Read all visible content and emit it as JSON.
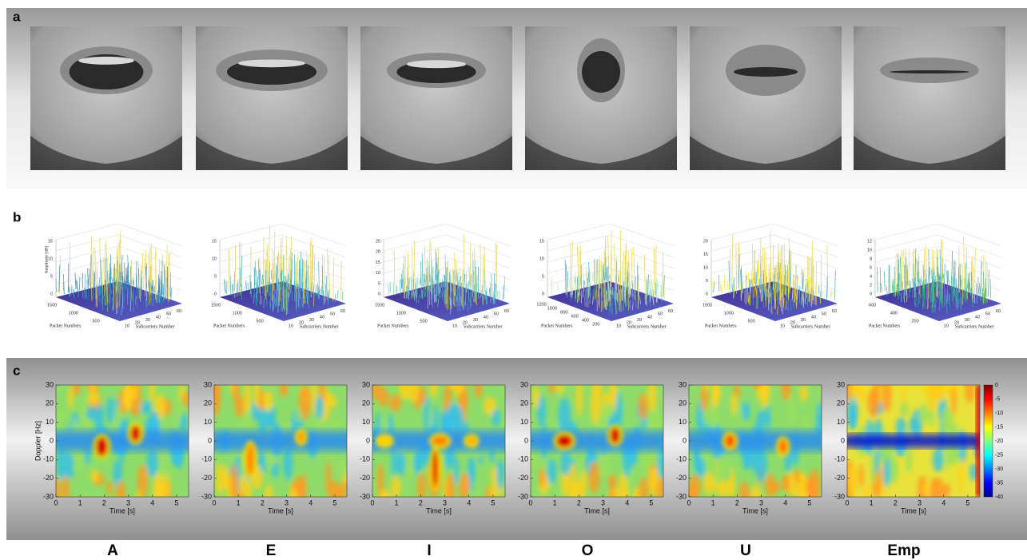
{
  "panel_labels": [
    "a",
    "b",
    "c"
  ],
  "vowels": [
    "A",
    "E",
    "I",
    "O",
    "U",
    "Emp"
  ],
  "surface": {
    "z_label": "Amplitude [dB]",
    "x_label": "Packet Numbers",
    "y_label": "Subcarriers Number",
    "plots": [
      {
        "zticks": [
          "15",
          "10",
          "5",
          "0"
        ],
        "packet_ticks": [
          "1500",
          "1000",
          "500"
        ],
        "sub_ticks": [
          "10",
          "20",
          "30",
          "40",
          "50",
          "60"
        ]
      },
      {
        "zticks": [
          "15",
          "10",
          "5",
          "0"
        ],
        "packet_ticks": [
          "1500",
          "1000",
          "500"
        ],
        "sub_ticks": [
          "10",
          "20",
          "30",
          "40",
          "50",
          "60"
        ]
      },
      {
        "zticks": [
          "25",
          "20",
          "15",
          "10",
          "5",
          "0"
        ],
        "packet_ticks": [
          "1500",
          "1000",
          "500"
        ],
        "sub_ticks": [
          "10",
          "20",
          "30",
          "40",
          "50",
          "60"
        ]
      },
      {
        "zticks": [
          "15",
          "10",
          "5",
          "0"
        ],
        "packet_ticks": [
          "1200",
          "1000",
          "800",
          "600",
          "400",
          "200"
        ],
        "sub_ticks": [
          "10",
          "20",
          "30",
          "40",
          "50",
          "60"
        ]
      },
      {
        "zticks": [
          "20",
          "15",
          "10",
          "5",
          "0"
        ],
        "packet_ticks": [
          "1500",
          "1000",
          "500"
        ],
        "sub_ticks": [
          "10",
          "20",
          "30",
          "40",
          "50",
          "60"
        ]
      },
      {
        "zticks": [
          "12",
          "10",
          "8",
          "6",
          "4",
          "2",
          "0"
        ],
        "packet_ticks": [
          "600",
          "400",
          "200"
        ],
        "sub_ticks": [
          "10",
          "20",
          "30",
          "40",
          "50",
          "60"
        ]
      }
    ]
  },
  "spectrogram": {
    "y_label": "Doppler [Hz]",
    "x_label": "Time [s]",
    "yticks": [
      "30",
      "20",
      "10",
      "0",
      "-10",
      "-20",
      "-30"
    ],
    "xticks": [
      "0",
      "1",
      "2",
      "3",
      "4",
      "5"
    ],
    "colorbar_ticks": [
      "0",
      "-5",
      "-10",
      "-15",
      "-20",
      "-25",
      "-30",
      "-35",
      "-40"
    ]
  }
}
